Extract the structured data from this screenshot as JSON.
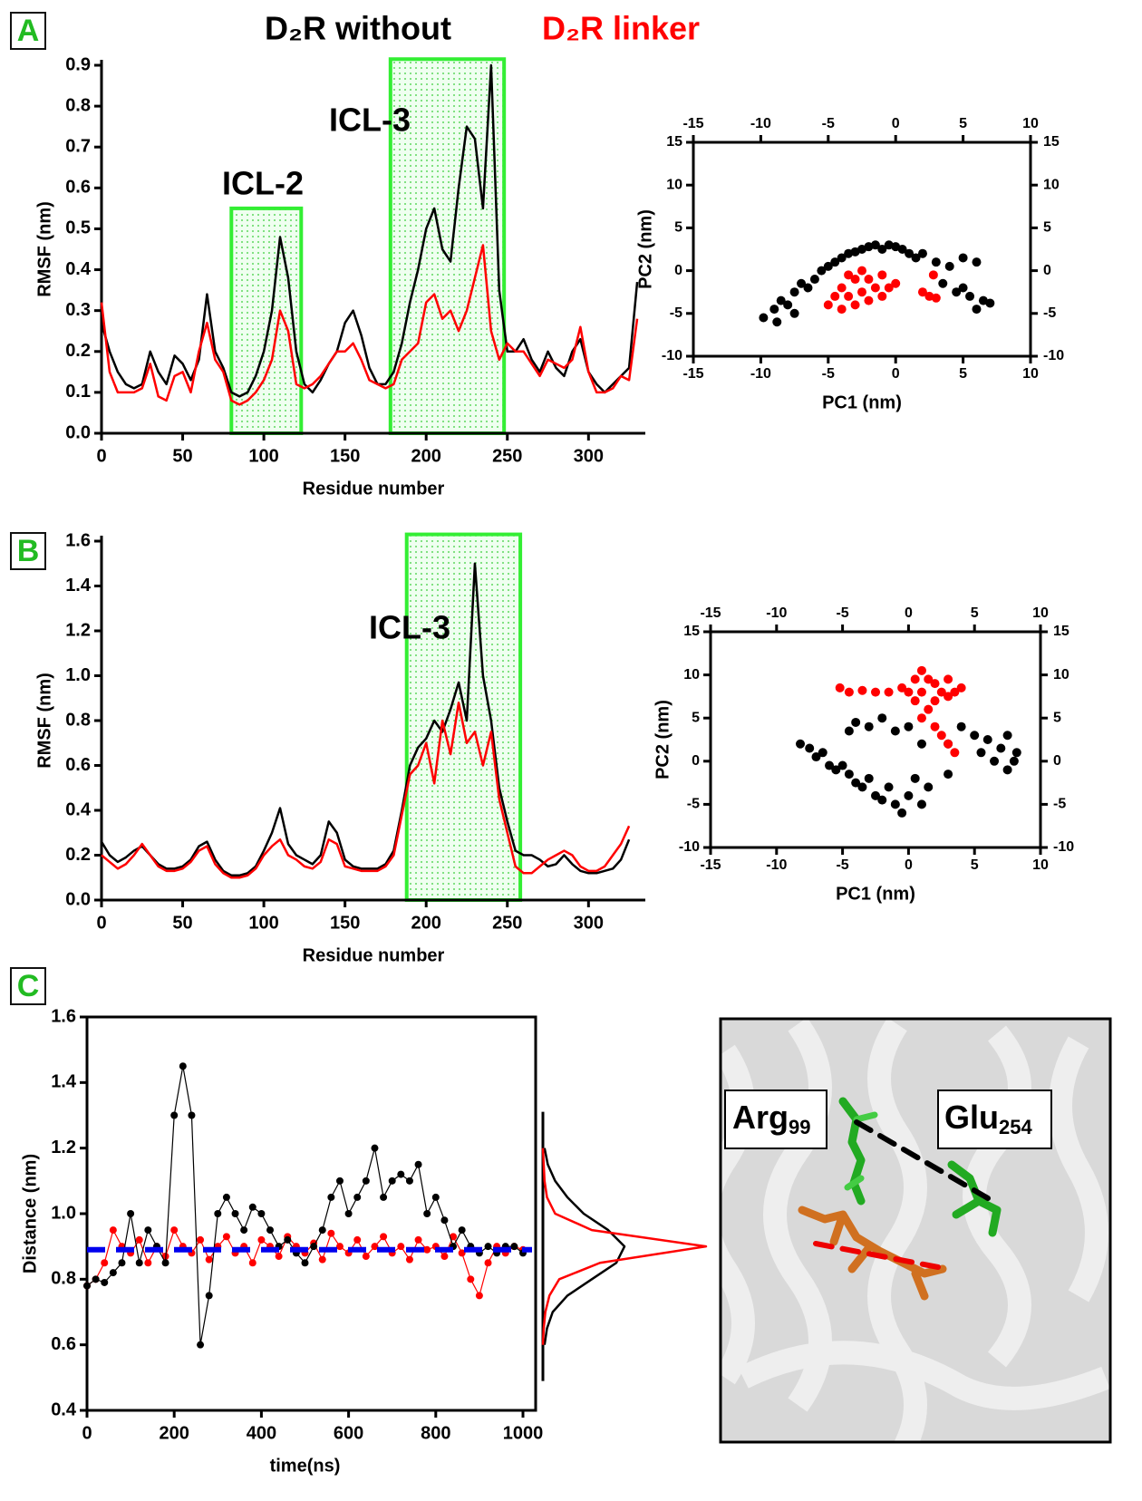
{
  "panels": [
    "A",
    "B",
    "C"
  ],
  "chart_data": [
    {
      "type": "line",
      "xlabel": "Residue number",
      "ylabel": "RMSF (nm)",
      "x": [
        0,
        5,
        10,
        15,
        20,
        25,
        30,
        35,
        40,
        45,
        50,
        55,
        60,
        65,
        70,
        75,
        80,
        85,
        90,
        95,
        100,
        105,
        110,
        115,
        120,
        125,
        130,
        135,
        140,
        145,
        150,
        155,
        160,
        165,
        170,
        175,
        180,
        185,
        190,
        195,
        200,
        205,
        210,
        215,
        220,
        225,
        230,
        235,
        240,
        245,
        250,
        255,
        260,
        265,
        270,
        275,
        280,
        285,
        290,
        295,
        300,
        305,
        310,
        315,
        320,
        325,
        330
      ],
      "series": [
        {
          "name": "D₂R without",
          "color": "#000000",
          "values": [
            0.27,
            0.2,
            0.15,
            0.12,
            0.11,
            0.12,
            0.2,
            0.15,
            0.12,
            0.19,
            0.17,
            0.13,
            0.18,
            0.34,
            0.2,
            0.16,
            0.1,
            0.09,
            0.1,
            0.14,
            0.2,
            0.3,
            0.48,
            0.38,
            0.2,
            0.12,
            0.1,
            0.13,
            0.17,
            0.2,
            0.27,
            0.3,
            0.24,
            0.16,
            0.12,
            0.12,
            0.15,
            0.22,
            0.32,
            0.4,
            0.5,
            0.55,
            0.45,
            0.42,
            0.6,
            0.75,
            0.72,
            0.55,
            0.9,
            0.35,
            0.2,
            0.2,
            0.23,
            0.18,
            0.15,
            0.2,
            0.16,
            0.14,
            0.2,
            0.23,
            0.15,
            0.12,
            0.1,
            0.12,
            0.14,
            0.16,
            0.37
          ]
        },
        {
          "name": "D₂R linker",
          "color": "#ff0000",
          "values": [
            0.32,
            0.15,
            0.1,
            0.1,
            0.1,
            0.11,
            0.17,
            0.09,
            0.08,
            0.14,
            0.15,
            0.1,
            0.2,
            0.27,
            0.18,
            0.15,
            0.08,
            0.07,
            0.08,
            0.1,
            0.13,
            0.18,
            0.3,
            0.25,
            0.12,
            0.11,
            0.12,
            0.14,
            0.17,
            0.2,
            0.2,
            0.22,
            0.18,
            0.13,
            0.12,
            0.11,
            0.12,
            0.18,
            0.2,
            0.22,
            0.32,
            0.34,
            0.28,
            0.3,
            0.25,
            0.3,
            0.38,
            0.46,
            0.25,
            0.18,
            0.22,
            0.2,
            0.2,
            0.17,
            0.14,
            0.18,
            0.17,
            0.16,
            0.18,
            0.26,
            0.15,
            0.1,
            0.1,
            0.11,
            0.14,
            0.13,
            0.28
          ]
        }
      ],
      "xlim": [
        0,
        335
      ],
      "ylim": [
        0,
        0.9
      ],
      "xticks": [
        0,
        50,
        100,
        150,
        200,
        250,
        300
      ],
      "yticks": [
        {
          "value": 0,
          "label": "0.0"
        },
        0.1,
        0.2,
        0.3,
        0.4,
        0.5,
        0.6,
        0.7,
        0.8,
        0.9
      ],
      "region_color": "#33ee33",
      "regions": [
        {
          "label": "ICL-2",
          "start": 80,
          "end": 123,
          "top": 0.55
        },
        {
          "label": "ICL-3",
          "start": 178,
          "end": 248,
          "top": 0.915
        }
      ]
    },
    {
      "type": "scatter",
      "xlabel": "PC1 (nm)",
      "ylabel": "PC2 (nm)",
      "mirror_axes": true,
      "xlim": [
        -15,
        10
      ],
      "ylim": [
        -10,
        15
      ],
      "xticks": [
        -15,
        -10,
        -5,
        0,
        5,
        10
      ],
      "yticks": [
        -10,
        -5,
        0,
        5,
        10,
        15
      ],
      "series": [
        {
          "color": "#000000",
          "x": [
            -9.8,
            -9,
            -8.5,
            -8,
            -7.5,
            -7,
            -6.5,
            -6,
            -5.5,
            -5,
            -4.5,
            -4,
            -3.5,
            -3,
            -2.5,
            -2,
            -1.5,
            -1,
            -0.5,
            0,
            0.5,
            1,
            1.5,
            2,
            3,
            4,
            5,
            6,
            3.5,
            4.5,
            5.5,
            6.5,
            6,
            5,
            7,
            -7.5,
            -8.8
          ],
          "values": [
            -5.5,
            -4.5,
            -3.5,
            -4,
            -2.5,
            -1.5,
            -2,
            -1,
            0,
            0.5,
            1,
            1.5,
            2,
            2.2,
            2.5,
            2.8,
            3,
            2.5,
            3,
            2.8,
            2.5,
            2,
            1.5,
            2,
            1,
            0.5,
            1.5,
            1,
            -1.5,
            -2.5,
            -3,
            -3.5,
            -4.5,
            -2,
            -3.8,
            -5,
            -6
          ]
        },
        {
          "color": "#ff0000",
          "x": [
            -5,
            -4.5,
            -4,
            -4,
            -3.5,
            -3,
            -3,
            -2.5,
            -2,
            -2,
            -1.5,
            -1,
            -1,
            -0.5,
            0,
            -2.5,
            -3.5,
            2,
            2.5,
            3,
            2.8
          ],
          "values": [
            -4,
            -3,
            -4.5,
            -2,
            -3,
            -1,
            -4,
            -2.5,
            -3.5,
            -1,
            -2,
            -3,
            -0.5,
            -2,
            -1.5,
            0,
            -0.5,
            -2.5,
            -3,
            -3.2,
            -0.5
          ]
        }
      ]
    },
    {
      "type": "line",
      "xlabel": "Residue number",
      "ylabel": "RMSF (nm)",
      "x": [
        0,
        5,
        10,
        15,
        20,
        25,
        30,
        35,
        40,
        45,
        50,
        55,
        60,
        65,
        70,
        75,
        80,
        85,
        90,
        95,
        100,
        105,
        110,
        115,
        120,
        125,
        130,
        135,
        140,
        145,
        150,
        155,
        160,
        165,
        170,
        175,
        180,
        185,
        190,
        195,
        200,
        205,
        210,
        215,
        220,
        225,
        230,
        235,
        240,
        245,
        250,
        255,
        260,
        265,
        270,
        275,
        280,
        285,
        290,
        295,
        300,
        305,
        310,
        315,
        320,
        325
      ],
      "series": [
        {
          "color": "#000000",
          "values": [
            0.26,
            0.2,
            0.17,
            0.19,
            0.22,
            0.24,
            0.2,
            0.16,
            0.14,
            0.14,
            0.15,
            0.18,
            0.24,
            0.26,
            0.18,
            0.13,
            0.11,
            0.11,
            0.12,
            0.15,
            0.22,
            0.3,
            0.41,
            0.25,
            0.2,
            0.18,
            0.16,
            0.2,
            0.35,
            0.3,
            0.18,
            0.15,
            0.14,
            0.14,
            0.14,
            0.16,
            0.22,
            0.4,
            0.6,
            0.68,
            0.72,
            0.8,
            0.75,
            0.85,
            0.97,
            0.8,
            1.5,
            1.0,
            0.8,
            0.5,
            0.35,
            0.22,
            0.2,
            0.2,
            0.18,
            0.15,
            0.16,
            0.2,
            0.16,
            0.13,
            0.12,
            0.12,
            0.13,
            0.14,
            0.18,
            0.27
          ]
        },
        {
          "color": "#ff0000",
          "values": [
            0.2,
            0.17,
            0.14,
            0.16,
            0.2,
            0.25,
            0.2,
            0.15,
            0.13,
            0.13,
            0.14,
            0.17,
            0.22,
            0.24,
            0.16,
            0.12,
            0.1,
            0.1,
            0.11,
            0.14,
            0.2,
            0.24,
            0.27,
            0.2,
            0.18,
            0.15,
            0.14,
            0.17,
            0.27,
            0.25,
            0.15,
            0.14,
            0.13,
            0.13,
            0.13,
            0.15,
            0.2,
            0.38,
            0.56,
            0.6,
            0.7,
            0.52,
            0.8,
            0.65,
            0.88,
            0.7,
            0.75,
            0.6,
            0.75,
            0.45,
            0.3,
            0.15,
            0.12,
            0.12,
            0.15,
            0.18,
            0.2,
            0.22,
            0.2,
            0.15,
            0.13,
            0.13,
            0.15,
            0.2,
            0.25,
            0.33
          ]
        }
      ],
      "xlim": [
        0,
        335
      ],
      "ylim": [
        0,
        1.6
      ],
      "xticks": [
        0,
        50,
        100,
        150,
        200,
        250,
        300
      ],
      "yticks": [
        {
          "value": 0,
          "label": "0.0"
        },
        0.2,
        0.4,
        0.6,
        0.8,
        {
          "value": 1,
          "label": "1.0"
        },
        1.2,
        1.4,
        1.6
      ],
      "region_color": "#33ee33",
      "regions": [
        {
          "label": "ICL-3",
          "start": 188,
          "end": 258,
          "top": 1.63
        }
      ]
    },
    {
      "type": "scatter",
      "xlabel": "PC1 (nm)",
      "ylabel": "PC2 (nm)",
      "mirror_axes": true,
      "xlim": [
        -15,
        10
      ],
      "ylim": [
        -10,
        15
      ],
      "xticks": [
        -15,
        -10,
        -5,
        0,
        5,
        10
      ],
      "yticks": [
        -10,
        -5,
        0,
        5,
        10,
        15
      ],
      "series": [
        {
          "color": "#000000",
          "x": [
            -8.2,
            -7.5,
            -7,
            -6.5,
            -6,
            -5.5,
            -5,
            -4.5,
            -4,
            -3.5,
            -3,
            -2.5,
            -2,
            -1.5,
            -1,
            -0.5,
            0,
            0.5,
            1,
            1.5,
            -4.5,
            -4,
            -3,
            -2,
            -1,
            0,
            1,
            3,
            4,
            5,
            5.5,
            6,
            6.5,
            7,
            7.5,
            7.5,
            8,
            8.2,
            3
          ],
          "values": [
            2,
            1.5,
            0.5,
            1,
            -0.5,
            -1,
            -0.5,
            -1.5,
            -2.5,
            -3,
            -2,
            -4,
            -4.5,
            -3,
            -5,
            -6,
            -4,
            -2,
            -5,
            -3,
            3.5,
            4.5,
            4,
            5,
            3.5,
            4,
            2,
            2,
            4,
            3,
            1,
            2.5,
            0,
            1.5,
            -1,
            3,
            0,
            1,
            -1.5
          ]
        },
        {
          "color": "#ff0000",
          "x": [
            -5.2,
            -4.5,
            -3.5,
            -2.5,
            -1.5,
            -0.5,
            0,
            0.5,
            1,
            1,
            1.5,
            2,
            2,
            2.5,
            3,
            3,
            3.5,
            1.5,
            2,
            2.5,
            3,
            3.5,
            1,
            0.5,
            4
          ],
          "values": [
            8.5,
            8,
            8.2,
            8,
            8,
            8.5,
            8,
            9.5,
            10.5,
            8,
            9.5,
            7,
            9,
            8,
            9.5,
            7.5,
            8,
            6,
            4,
            3,
            2,
            1,
            5,
            7,
            8.5
          ]
        }
      ]
    },
    {
      "type": "timeseries",
      "xlabel": "time(ns)",
      "ylabel": "Distance (nm)",
      "x": [
        0,
        20,
        40,
        60,
        80,
        100,
        120,
        140,
        160,
        180,
        200,
        220,
        240,
        260,
        280,
        300,
        320,
        340,
        360,
        380,
        400,
        420,
        440,
        460,
        480,
        500,
        520,
        540,
        560,
        580,
        600,
        620,
        640,
        660,
        680,
        700,
        720,
        740,
        760,
        780,
        800,
        820,
        840,
        860,
        880,
        900,
        920,
        940,
        960,
        980,
        1000
      ],
      "series": [
        {
          "color": "#ff0000",
          "values": [
            0.78,
            0.8,
            0.85,
            0.95,
            0.9,
            0.88,
            0.92,
            0.85,
            0.9,
            0.87,
            0.95,
            0.9,
            0.88,
            0.92,
            0.86,
            0.9,
            0.93,
            0.88,
            0.9,
            0.85,
            0.92,
            0.9,
            0.87,
            0.93,
            0.9,
            0.88,
            0.91,
            0.86,
            0.94,
            0.9,
            0.88,
            0.92,
            0.87,
            0.9,
            0.93,
            0.88,
            0.9,
            0.86,
            0.92,
            0.89,
            0.9,
            0.87,
            0.93,
            0.88,
            0.8,
            0.75,
            0.85,
            0.9,
            0.88,
            0.9,
            0.89
          ]
        },
        {
          "color": "#000000",
          "values": [
            0.78,
            0.8,
            0.79,
            0.82,
            0.85,
            1.0,
            0.85,
            0.95,
            0.9,
            0.85,
            1.3,
            1.45,
            1.3,
            0.6,
            0.75,
            1.0,
            1.05,
            1.0,
            0.95,
            1.02,
            1.0,
            0.95,
            0.9,
            0.92,
            0.88,
            0.85,
            0.9,
            0.95,
            1.05,
            1.1,
            1.0,
            1.05,
            1.1,
            1.2,
            1.05,
            1.1,
            1.12,
            1.1,
            1.15,
            1.0,
            1.05,
            0.98,
            0.9,
            0.95,
            0.9,
            0.88,
            0.9,
            0.88,
            0.9,
            0.9,
            0.88
          ]
        }
      ],
      "mean": 0.89,
      "mean_color": "#0000ee",
      "marginal": {
        "y": [
          0.6,
          0.65,
          0.7,
          0.75,
          0.8,
          0.85,
          0.9,
          0.95,
          1.0,
          1.05,
          1.1,
          1.15,
          1.2
        ],
        "series": [
          {
            "color": "#000000",
            "values": [
              0.02,
              0.05,
              0.12,
              0.3,
              0.6,
              0.9,
              1.0,
              0.8,
              0.5,
              0.3,
              0.15,
              0.06,
              0.02
            ]
          },
          {
            "color": "#ff0000",
            "values": [
              0,
              0.01,
              0.03,
              0.08,
              0.2,
              0.7,
              2.0,
              0.6,
              0.15,
              0.05,
              0.02,
              0.01,
              0
            ]
          }
        ]
      },
      "xlim": [
        0,
        1000
      ],
      "ylim": [
        0.4,
        1.6
      ],
      "xticks": [
        0,
        200,
        400,
        600,
        800,
        1000
      ],
      "yticks": [
        0.4,
        0.6,
        0.8,
        {
          "value": 1,
          "label": "1.0"
        },
        1.2,
        1.4,
        1.6
      ]
    }
  ],
  "image": {
    "labels": [
      {
        "text": "Arg",
        "sub": "99"
      },
      {
        "text": "Glu",
        "sub": "254"
      }
    ]
  }
}
